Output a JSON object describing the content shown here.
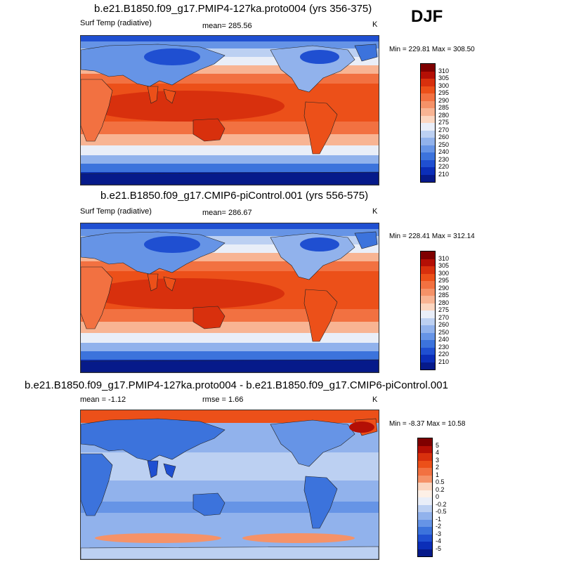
{
  "season": "DJF",
  "panels": [
    {
      "title": "b.e21.B1850.f09_g17.PMIP4-127ka.proto004 (yrs 356-375)",
      "left_text": "Surf Temp (radiative)",
      "center_text": "mean= 285.56",
      "right_text": "K",
      "minmax": "Min = 229.81 Max = 308.50",
      "palette": "temp"
    },
    {
      "title": "b.e21.B1850.f09_g17.CMIP6-piControl.001 (yrs 556-575)",
      "left_text": "Surf Temp (radiative)",
      "center_text": "mean= 286.67",
      "right_text": "K",
      "minmax": "Min = 228.41 Max = 312.14",
      "palette": "temp"
    },
    {
      "title": "b.e21.B1850.f09_g17.PMIP4-127ka.proto004 - b.e21.B1850.f09_g17.CMIP6-piControl.001",
      "left_text": "mean =  -1.12",
      "center_text": "rmse =  1.66",
      "right_text": "K",
      "minmax": "Min =  -8.37 Max =  10.58",
      "palette": "diff"
    }
  ],
  "colorbars": {
    "temp": {
      "labels": [
        "310",
        "305",
        "300",
        "295",
        "290",
        "285",
        "280",
        "275",
        "270",
        "260",
        "250",
        "240",
        "230",
        "220",
        "210"
      ],
      "colors": [
        "#7f0000",
        "#b40f05",
        "#d8300d",
        "#ec5019",
        "#f27141",
        "#f59268",
        "#f8b493",
        "#fbd6c0",
        "#e9eef8",
        "#bcd0f2",
        "#91b2ec",
        "#6694e6",
        "#3c73dc",
        "#1f4fd1",
        "#0b2eb8",
        "#061a8a"
      ]
    },
    "diff": {
      "labels": [
        "5",
        "4",
        "3",
        "2",
        "1",
        "0.5",
        "0.2",
        "0",
        "-0.2",
        "-0.5",
        "-1",
        "-2",
        "-3",
        "-4",
        "-5"
      ],
      "colors": [
        "#7f0000",
        "#b40f05",
        "#d8300d",
        "#ec5019",
        "#f27141",
        "#f59268",
        "#fbd6c0",
        "#fdf0e6",
        "#e9eef8",
        "#bcd0f2",
        "#91b2ec",
        "#6694e6",
        "#3c73dc",
        "#1f4fd1",
        "#0b2eb8",
        "#061a8a"
      ]
    }
  },
  "chart_data": [
    {
      "type": "heatmap",
      "title": "b.e21.B1850.f09_g17.PMIP4-127ka.proto004 (yrs 356-375)",
      "variable": "Surf Temp (radiative)",
      "units": "K",
      "mean": 285.56,
      "min": 229.81,
      "max": 308.5,
      "contour_levels": [
        210,
        220,
        230,
        240,
        250,
        260,
        270,
        275,
        280,
        285,
        290,
        295,
        300,
        305,
        310
      ]
    },
    {
      "type": "heatmap",
      "title": "b.e21.B1850.f09_g17.CMIP6-piControl.001 (yrs 556-575)",
      "variable": "Surf Temp (radiative)",
      "units": "K",
      "mean": 286.67,
      "min": 228.41,
      "max": 312.14,
      "contour_levels": [
        210,
        220,
        230,
        240,
        250,
        260,
        270,
        275,
        280,
        285,
        290,
        295,
        300,
        305,
        310
      ]
    },
    {
      "type": "heatmap",
      "title": "b.e21.B1850.f09_g17.PMIP4-127ka.proto004 - b.e21.B1850.f09_g17.CMIP6-piControl.001",
      "units": "K",
      "mean": -1.12,
      "rmse": 1.66,
      "min": -8.37,
      "max": 10.58,
      "contour_levels": [
        -5,
        -4,
        -3,
        -2,
        -1,
        -0.5,
        -0.2,
        0,
        0.2,
        0.5,
        1,
        2,
        3,
        4,
        5
      ]
    }
  ]
}
